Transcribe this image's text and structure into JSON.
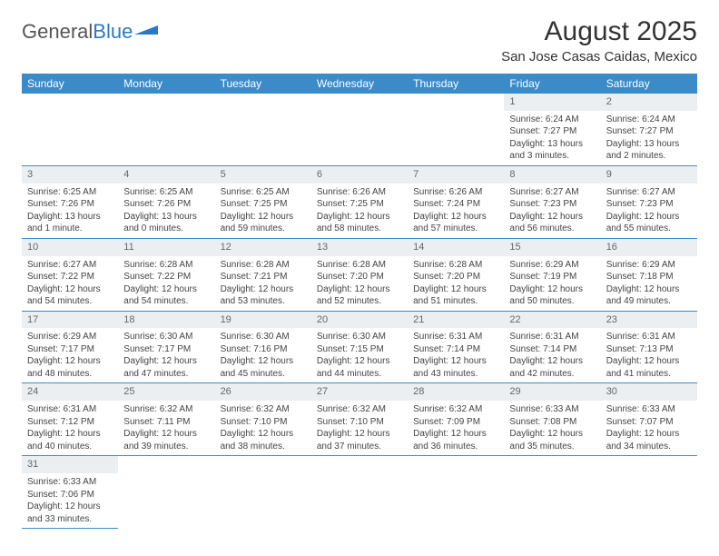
{
  "logo": {
    "text1": "General",
    "text2": "Blue"
  },
  "title": "August 2025",
  "location": "San Jose Casas Caidas, Mexico",
  "colors": {
    "header_bg": "#3b8bc9",
    "daynum_bg": "#eceff1",
    "rule": "#3b8bc9"
  },
  "weekdays": [
    "Sunday",
    "Monday",
    "Tuesday",
    "Wednesday",
    "Thursday",
    "Friday",
    "Saturday"
  ],
  "weeks": [
    [
      null,
      null,
      null,
      null,
      null,
      {
        "n": "1",
        "sr": "Sunrise: 6:24 AM",
        "ss": "Sunset: 7:27 PM",
        "d1": "Daylight: 13 hours",
        "d2": "and 3 minutes."
      },
      {
        "n": "2",
        "sr": "Sunrise: 6:24 AM",
        "ss": "Sunset: 7:27 PM",
        "d1": "Daylight: 13 hours",
        "d2": "and 2 minutes."
      }
    ],
    [
      {
        "n": "3",
        "sr": "Sunrise: 6:25 AM",
        "ss": "Sunset: 7:26 PM",
        "d1": "Daylight: 13 hours",
        "d2": "and 1 minute."
      },
      {
        "n": "4",
        "sr": "Sunrise: 6:25 AM",
        "ss": "Sunset: 7:26 PM",
        "d1": "Daylight: 13 hours",
        "d2": "and 0 minutes."
      },
      {
        "n": "5",
        "sr": "Sunrise: 6:25 AM",
        "ss": "Sunset: 7:25 PM",
        "d1": "Daylight: 12 hours",
        "d2": "and 59 minutes."
      },
      {
        "n": "6",
        "sr": "Sunrise: 6:26 AM",
        "ss": "Sunset: 7:25 PM",
        "d1": "Daylight: 12 hours",
        "d2": "and 58 minutes."
      },
      {
        "n": "7",
        "sr": "Sunrise: 6:26 AM",
        "ss": "Sunset: 7:24 PM",
        "d1": "Daylight: 12 hours",
        "d2": "and 57 minutes."
      },
      {
        "n": "8",
        "sr": "Sunrise: 6:27 AM",
        "ss": "Sunset: 7:23 PM",
        "d1": "Daylight: 12 hours",
        "d2": "and 56 minutes."
      },
      {
        "n": "9",
        "sr": "Sunrise: 6:27 AM",
        "ss": "Sunset: 7:23 PM",
        "d1": "Daylight: 12 hours",
        "d2": "and 55 minutes."
      }
    ],
    [
      {
        "n": "10",
        "sr": "Sunrise: 6:27 AM",
        "ss": "Sunset: 7:22 PM",
        "d1": "Daylight: 12 hours",
        "d2": "and 54 minutes."
      },
      {
        "n": "11",
        "sr": "Sunrise: 6:28 AM",
        "ss": "Sunset: 7:22 PM",
        "d1": "Daylight: 12 hours",
        "d2": "and 54 minutes."
      },
      {
        "n": "12",
        "sr": "Sunrise: 6:28 AM",
        "ss": "Sunset: 7:21 PM",
        "d1": "Daylight: 12 hours",
        "d2": "and 53 minutes."
      },
      {
        "n": "13",
        "sr": "Sunrise: 6:28 AM",
        "ss": "Sunset: 7:20 PM",
        "d1": "Daylight: 12 hours",
        "d2": "and 52 minutes."
      },
      {
        "n": "14",
        "sr": "Sunrise: 6:28 AM",
        "ss": "Sunset: 7:20 PM",
        "d1": "Daylight: 12 hours",
        "d2": "and 51 minutes."
      },
      {
        "n": "15",
        "sr": "Sunrise: 6:29 AM",
        "ss": "Sunset: 7:19 PM",
        "d1": "Daylight: 12 hours",
        "d2": "and 50 minutes."
      },
      {
        "n": "16",
        "sr": "Sunrise: 6:29 AM",
        "ss": "Sunset: 7:18 PM",
        "d1": "Daylight: 12 hours",
        "d2": "and 49 minutes."
      }
    ],
    [
      {
        "n": "17",
        "sr": "Sunrise: 6:29 AM",
        "ss": "Sunset: 7:17 PM",
        "d1": "Daylight: 12 hours",
        "d2": "and 48 minutes."
      },
      {
        "n": "18",
        "sr": "Sunrise: 6:30 AM",
        "ss": "Sunset: 7:17 PM",
        "d1": "Daylight: 12 hours",
        "d2": "and 47 minutes."
      },
      {
        "n": "19",
        "sr": "Sunrise: 6:30 AM",
        "ss": "Sunset: 7:16 PM",
        "d1": "Daylight: 12 hours",
        "d2": "and 45 minutes."
      },
      {
        "n": "20",
        "sr": "Sunrise: 6:30 AM",
        "ss": "Sunset: 7:15 PM",
        "d1": "Daylight: 12 hours",
        "d2": "and 44 minutes."
      },
      {
        "n": "21",
        "sr": "Sunrise: 6:31 AM",
        "ss": "Sunset: 7:14 PM",
        "d1": "Daylight: 12 hours",
        "d2": "and 43 minutes."
      },
      {
        "n": "22",
        "sr": "Sunrise: 6:31 AM",
        "ss": "Sunset: 7:14 PM",
        "d1": "Daylight: 12 hours",
        "d2": "and 42 minutes."
      },
      {
        "n": "23",
        "sr": "Sunrise: 6:31 AM",
        "ss": "Sunset: 7:13 PM",
        "d1": "Daylight: 12 hours",
        "d2": "and 41 minutes."
      }
    ],
    [
      {
        "n": "24",
        "sr": "Sunrise: 6:31 AM",
        "ss": "Sunset: 7:12 PM",
        "d1": "Daylight: 12 hours",
        "d2": "and 40 minutes."
      },
      {
        "n": "25",
        "sr": "Sunrise: 6:32 AM",
        "ss": "Sunset: 7:11 PM",
        "d1": "Daylight: 12 hours",
        "d2": "and 39 minutes."
      },
      {
        "n": "26",
        "sr": "Sunrise: 6:32 AM",
        "ss": "Sunset: 7:10 PM",
        "d1": "Daylight: 12 hours",
        "d2": "and 38 minutes."
      },
      {
        "n": "27",
        "sr": "Sunrise: 6:32 AM",
        "ss": "Sunset: 7:10 PM",
        "d1": "Daylight: 12 hours",
        "d2": "and 37 minutes."
      },
      {
        "n": "28",
        "sr": "Sunrise: 6:32 AM",
        "ss": "Sunset: 7:09 PM",
        "d1": "Daylight: 12 hours",
        "d2": "and 36 minutes."
      },
      {
        "n": "29",
        "sr": "Sunrise: 6:33 AM",
        "ss": "Sunset: 7:08 PM",
        "d1": "Daylight: 12 hours",
        "d2": "and 35 minutes."
      },
      {
        "n": "30",
        "sr": "Sunrise: 6:33 AM",
        "ss": "Sunset: 7:07 PM",
        "d1": "Daylight: 12 hours",
        "d2": "and 34 minutes."
      }
    ],
    [
      {
        "n": "31",
        "sr": "Sunrise: 6:33 AM",
        "ss": "Sunset: 7:06 PM",
        "d1": "Daylight: 12 hours",
        "d2": "and 33 minutes."
      },
      null,
      null,
      null,
      null,
      null,
      null
    ]
  ]
}
